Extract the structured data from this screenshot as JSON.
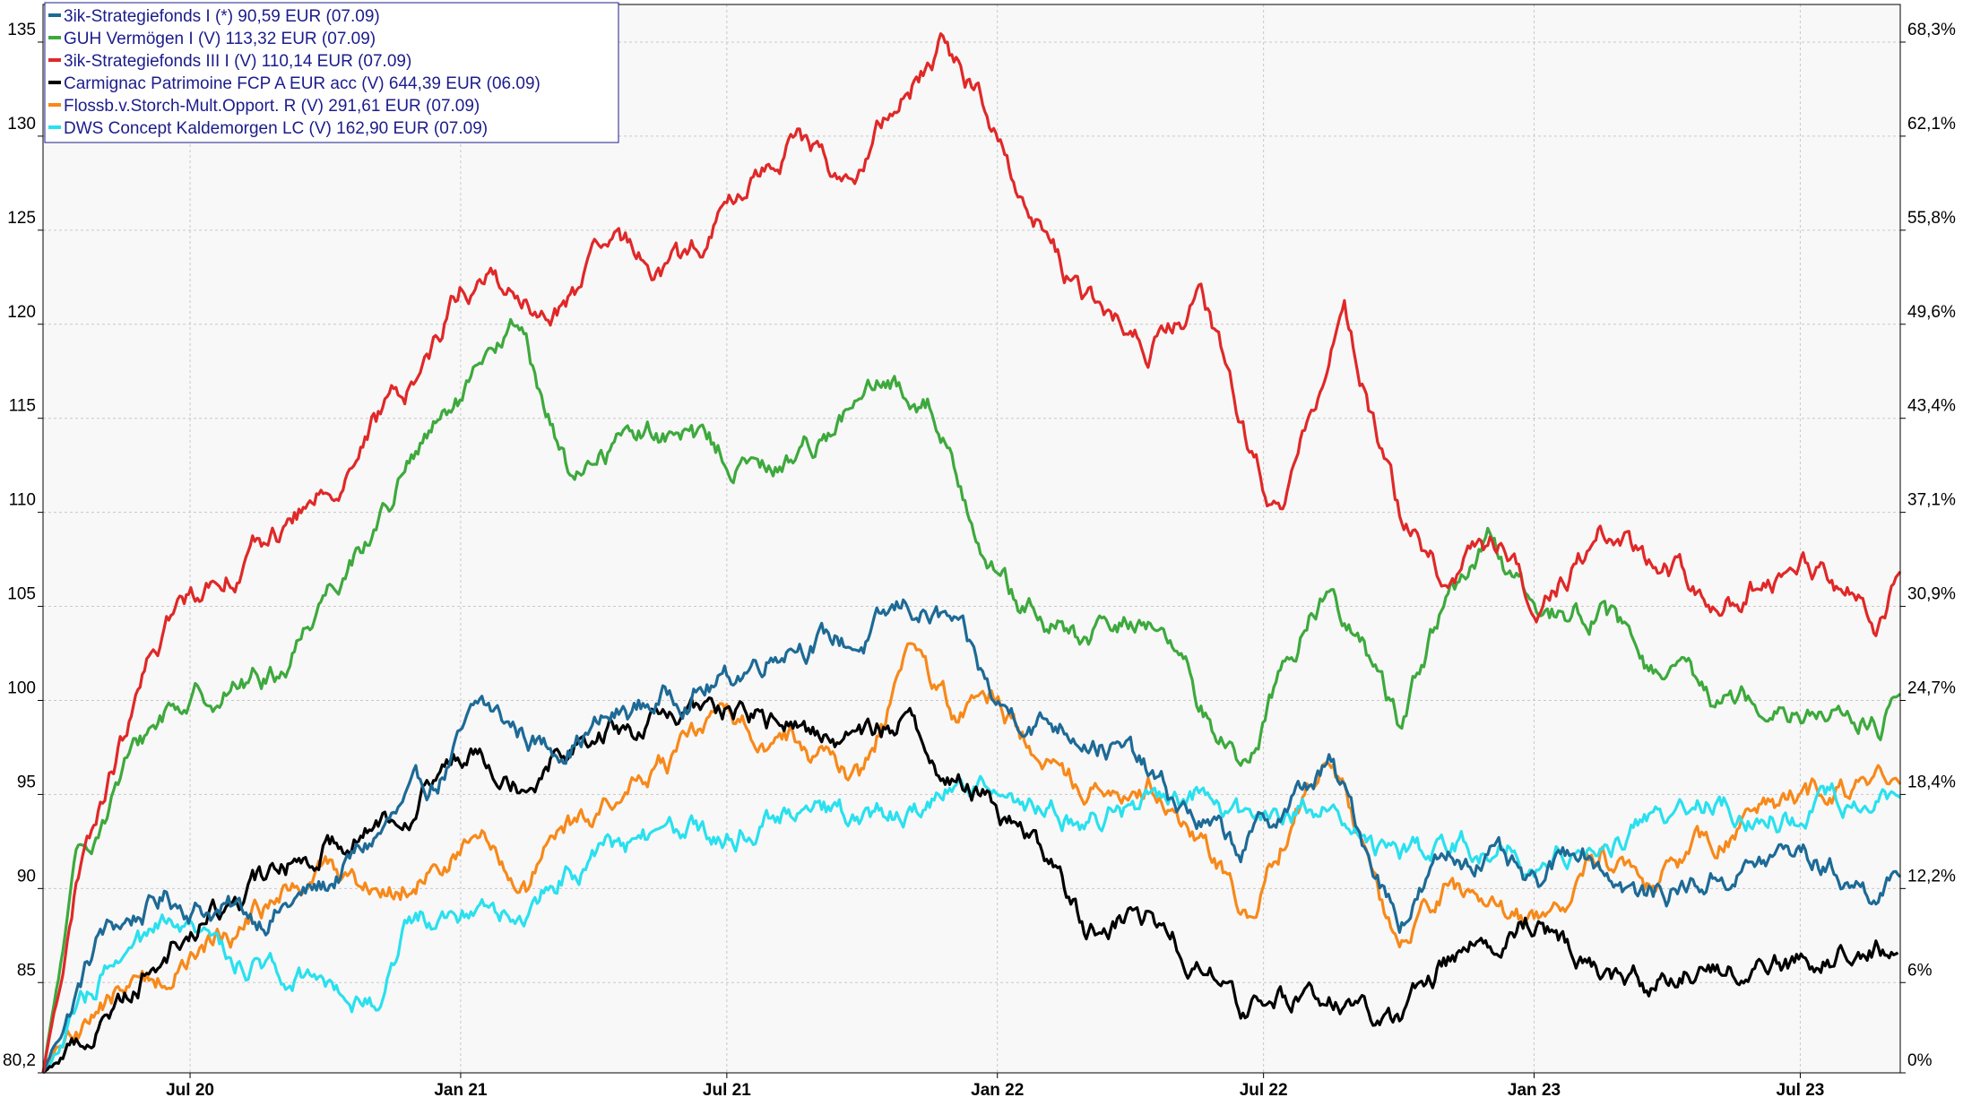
{
  "chart_data": {
    "type": "line",
    "title": "",
    "xlabel": "",
    "ylabel": "",
    "x_ticks": [
      "Jul 20",
      "Jan 21",
      "Jul 21",
      "Jan 22",
      "Jul 22",
      "Jan 23",
      "Jul 23"
    ],
    "x_tick_dates": [
      "2020-07-01",
      "2021-01-01",
      "2021-07-01",
      "2022-01-01",
      "2022-07-01",
      "2023-01-01",
      "2023-07-01"
    ],
    "x_range": [
      "2020-03-23",
      "2023-09-07"
    ],
    "y_left_ticks": [
      "80,2",
      "85",
      "90",
      "95",
      "100",
      "105",
      "110",
      "115",
      "120",
      "125",
      "130",
      "135"
    ],
    "y_left_range": [
      80.2,
      137
    ],
    "y_right_ticks": [
      "0%",
      "6%",
      "12,2%",
      "18,4%",
      "24,7%",
      "30,9%",
      "37,1%",
      "43,4%",
      "49,6%",
      "55,8%",
      "62,1%",
      "68,3%"
    ],
    "grid": true,
    "legend_position": "top-left",
    "colors": {
      "background": "#f8f8f8",
      "grid": "#c8c8c8",
      "legend_text": "#1c1c8c",
      "axis_text": "#000000"
    },
    "series": [
      {
        "name": "3ik-Strategiefonds I (*) 90,59 EUR (07.09)",
        "color": "#1d6a96",
        "x": [
          "2020-03-23",
          "2020-05-01",
          "2020-06-15",
          "2020-08-15",
          "2020-10-01",
          "2020-11-15",
          "2020-12-15",
          "2021-01-15",
          "2021-03-01",
          "2021-04-15",
          "2021-06-01",
          "2021-07-01",
          "2021-08-15",
          "2021-10-01",
          "2021-11-01",
          "2021-12-01",
          "2022-01-01",
          "2022-02-01",
          "2022-03-01",
          "2022-04-01",
          "2022-05-01",
          "2022-06-15",
          "2022-08-15",
          "2022-10-01",
          "2022-11-01",
          "2022-12-01",
          "2023-01-01",
          "2023-02-01",
          "2023-03-15",
          "2023-05-01",
          "2023-07-01",
          "2023-08-15",
          "2023-09-07"
        ],
        "values": [
          80.2,
          87.5,
          89.5,
          88.5,
          90.0,
          93.5,
          95.5,
          99.5,
          97.5,
          99.0,
          100.5,
          101.0,
          103.5,
          103.0,
          105.0,
          104.0,
          99.5,
          99.0,
          98.5,
          97.0,
          94.5,
          92.0,
          96.5,
          88.5,
          91.5,
          92.0,
          89.5,
          92.5,
          89.5,
          90.5,
          92.0,
          90.0,
          90.59
        ]
      },
      {
        "name": "GUH Vermögen I (V) 113,32 EUR (07.09)",
        "color": "#3da93d",
        "x": [
          "2020-03-23",
          "2020-04-15",
          "2020-05-15",
          "2020-06-15",
          "2020-07-15",
          "2020-09-01",
          "2020-10-01",
          "2020-11-01",
          "2020-12-01",
          "2021-01-15",
          "2021-02-10",
          "2021-03-15",
          "2021-05-01",
          "2021-06-15",
          "2021-08-01",
          "2021-09-15",
          "2021-10-15",
          "2021-11-15",
          "2021-12-15",
          "2022-01-15",
          "2022-03-01",
          "2022-04-15",
          "2022-05-20",
          "2022-06-20",
          "2022-07-10",
          "2022-08-15",
          "2022-09-30",
          "2022-11-01",
          "2022-12-01",
          "2023-01-01",
          "2023-02-15",
          "2023-03-20",
          "2023-05-01",
          "2023-06-15",
          "2023-08-01",
          "2023-08-25",
          "2023-09-07"
        ],
        "values": [
          80.2,
          91.0,
          96.0,
          99.5,
          100.5,
          101.5,
          106.0,
          109.0,
          113.0,
          117.0,
          120.0,
          112.0,
          114.5,
          113.5,
          112.0,
          115.0,
          116.5,
          116.0,
          110.0,
          105.0,
          103.0,
          104.5,
          99.5,
          96.5,
          101.0,
          106.5,
          99.0,
          105.0,
          108.0,
          104.5,
          105.0,
          101.5,
          100.0,
          100.5,
          99.0,
          98.8,
          100.3
        ]
      },
      {
        "name": "3ik-Strategiefonds III I (V) 110,14 EUR (07.09)",
        "color": "#e02828",
        "x": [
          "2020-03-23",
          "2020-04-15",
          "2020-05-15",
          "2020-06-15",
          "2020-07-15",
          "2020-09-01",
          "2020-10-01",
          "2020-11-01",
          "2020-12-01",
          "2021-01-01",
          "2021-01-25",
          "2021-03-01",
          "2021-04-15",
          "2021-06-01",
          "2021-07-01",
          "2021-08-15",
          "2021-09-25",
          "2021-10-20",
          "2021-11-25",
          "2021-12-20",
          "2022-01-20",
          "2022-03-01",
          "2022-04-15",
          "2022-05-20",
          "2022-06-15",
          "2022-07-15",
          "2022-08-01",
          "2022-08-25",
          "2022-10-01",
          "2022-11-01",
          "2022-12-10",
          "2023-01-01",
          "2023-02-15",
          "2023-03-20",
          "2023-05-15",
          "2023-07-01",
          "2023-08-01",
          "2023-08-20",
          "2023-09-07"
        ],
        "values": [
          80.2,
          90.0,
          97.5,
          104.0,
          106.5,
          109.0,
          111.0,
          114.5,
          117.0,
          122.0,
          122.5,
          120.0,
          124.0,
          123.0,
          126.0,
          130.0,
          127.5,
          131.0,
          135.0,
          132.0,
          127.0,
          121.0,
          119.0,
          121.0,
          115.0,
          109.0,
          115.0,
          121.0,
          110.0,
          106.5,
          108.5,
          105.0,
          109.0,
          107.5,
          105.5,
          107.5,
          106.0,
          104.0,
          106.8
        ]
      },
      {
        "name": "Carmignac Patrimoine FCP A EUR acc (V) 644,39 EUR (06.09)",
        "color": "#000000",
        "x": [
          "2020-03-23",
          "2020-05-01",
          "2020-06-15",
          "2020-08-15",
          "2020-10-01",
          "2020-11-15",
          "2020-12-15",
          "2021-01-15",
          "2021-02-15",
          "2021-03-15",
          "2021-05-01",
          "2021-07-01",
          "2021-08-15",
          "2021-10-01",
          "2021-11-01",
          "2021-12-01",
          "2022-01-01",
          "2022-02-01",
          "2022-03-01",
          "2022-04-15",
          "2022-05-20",
          "2022-06-20",
          "2022-08-15",
          "2022-09-30",
          "2022-11-01",
          "2022-12-01",
          "2023-01-01",
          "2023-02-15",
          "2023-03-20",
          "2023-05-01",
          "2023-06-15",
          "2023-08-01",
          "2023-09-06"
        ],
        "values": [
          80.2,
          83.0,
          87.0,
          90.0,
          92.5,
          94.0,
          96.0,
          98.0,
          96.0,
          98.0,
          98.5,
          99.5,
          98.5,
          98.0,
          99.0,
          96.0,
          94.5,
          92.0,
          88.0,
          88.5,
          86.0,
          83.5,
          84.5,
          82.5,
          86.0,
          87.5,
          88.5,
          86.0,
          85.0,
          86.0,
          86.0,
          86.5,
          86.6
        ]
      },
      {
        "name": "Flossb.v.Storch-Mult.Opport. R (V) 291,61 EUR (07.09)",
        "color": "#f7891a",
        "x": [
          "2020-03-23",
          "2020-05-01",
          "2020-06-15",
          "2020-08-15",
          "2020-10-01",
          "2020-11-15",
          "2020-12-15",
          "2021-01-15",
          "2021-02-15",
          "2021-03-15",
          "2021-05-01",
          "2021-07-01",
          "2021-08-15",
          "2021-10-01",
          "2021-11-01",
          "2021-12-01",
          "2022-01-01",
          "2022-02-01",
          "2022-03-01",
          "2022-04-15",
          "2022-05-20",
          "2022-06-20",
          "2022-08-15",
          "2022-09-30",
          "2022-11-01",
          "2022-12-01",
          "2023-01-01",
          "2023-02-15",
          "2023-03-20",
          "2023-05-01",
          "2023-06-15",
          "2023-08-01",
          "2023-09-07"
        ],
        "values": [
          80.2,
          84.0,
          85.5,
          88.5,
          91.0,
          90.0,
          91.5,
          92.5,
          90.0,
          93.0,
          95.5,
          99.0,
          98.0,
          96.0,
          102.0,
          99.5,
          100.0,
          97.0,
          95.5,
          96.0,
          92.0,
          89.0,
          97.5,
          86.5,
          89.5,
          89.0,
          88.0,
          92.0,
          90.0,
          92.5,
          94.5,
          95.0,
          95.5
        ]
      },
      {
        "name": "DWS Concept Kaldemorgen LC (V) 162,90 EUR (07.09)",
        "color": "#2ae0ee",
        "x": [
          "2020-03-23",
          "2020-05-01",
          "2020-06-15",
          "2020-08-15",
          "2020-10-01",
          "2020-11-10",
          "2020-11-25",
          "2021-01-15",
          "2021-02-15",
          "2021-03-15",
          "2021-05-01",
          "2021-07-01",
          "2021-08-15",
          "2021-10-01",
          "2021-11-01",
          "2021-12-01",
          "2022-01-01",
          "2022-02-01",
          "2022-03-01",
          "2022-04-15",
          "2022-05-20",
          "2022-06-20",
          "2022-08-15",
          "2022-09-30",
          "2022-11-01",
          "2022-12-01",
          "2023-01-01",
          "2023-02-15",
          "2023-03-20",
          "2023-05-01",
          "2023-06-15",
          "2023-08-01",
          "2023-09-07"
        ],
        "values": [
          80.2,
          85.0,
          87.5,
          86.0,
          85.5,
          84.0,
          88.0,
          89.5,
          88.5,
          91.0,
          92.5,
          93.0,
          94.5,
          93.5,
          94.0,
          95.5,
          95.0,
          94.5,
          93.5,
          94.5,
          95.0,
          93.0,
          95.0,
          91.0,
          92.0,
          92.5,
          91.5,
          93.0,
          93.0,
          94.5,
          94.0,
          94.5,
          94.8
        ]
      }
    ]
  }
}
